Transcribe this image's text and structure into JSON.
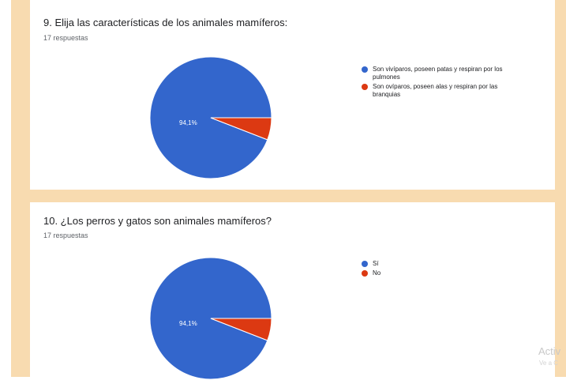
{
  "colors": {
    "background_band": "#f8dbb0",
    "series_blue": "#3366cc",
    "series_red": "#dc3912"
  },
  "chart_data": [
    {
      "type": "pie",
      "title": "9. Elija las características de los animales mamíferos:",
      "subtitle": "17 respuestas",
      "categories": [
        "Son vivíparos, poseen patas y respiran por los pulmones",
        "Son ovíparos, poseen alas y respiran por las branquias"
      ],
      "values": [
        94.1,
        5.9
      ],
      "data_labels": [
        "94,1%",
        ""
      ],
      "colors": [
        "#3366cc",
        "#dc3912"
      ],
      "legend": "right"
    },
    {
      "type": "pie",
      "title": "10. ¿Los perros y gatos son animales mamíferos?",
      "subtitle": "17 respuestas",
      "categories": [
        "Sí",
        "No"
      ],
      "values": [
        94.1,
        5.9
      ],
      "data_labels": [
        "94,1%",
        ""
      ],
      "colors": [
        "#3366cc",
        "#dc3912"
      ],
      "legend": "right"
    }
  ],
  "watermark": {
    "line1": "Activ",
    "line2": "Ve a C"
  }
}
